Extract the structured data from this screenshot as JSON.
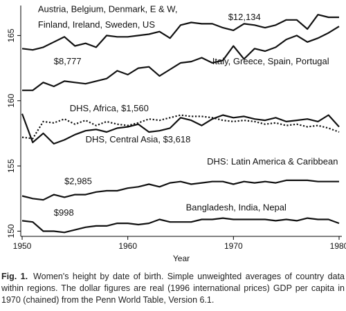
{
  "chart_data": {
    "type": "line",
    "xlabel": "Year",
    "ylabel": "",
    "xlim": [
      1950,
      1980
    ],
    "ylim": [
      149.6,
      167.3
    ],
    "xticks": [
      1950,
      1960,
      1970,
      1980
    ],
    "yticks": [
      150,
      155,
      160,
      165
    ],
    "grid": false,
    "x": [
      1950,
      1951,
      1952,
      1953,
      1954,
      1955,
      1956,
      1957,
      1958,
      1959,
      1960,
      1961,
      1962,
      1963,
      1964,
      1965,
      1966,
      1967,
      1968,
      1969,
      1970,
      1971,
      1972,
      1973,
      1974,
      1975,
      1976,
      1977,
      1978,
      1979,
      1980
    ],
    "series": [
      {
        "id": "western",
        "style": "solid",
        "values": [
          164.0,
          163.9,
          164.1,
          164.5,
          164.9,
          164.2,
          164.4,
          164.1,
          165.0,
          164.9,
          164.9,
          165.0,
          165.1,
          165.3,
          164.8,
          165.8,
          166.0,
          165.9,
          165.9,
          165.6,
          165.4,
          165.9,
          165.8,
          165.6,
          165.8,
          166.2,
          166.2,
          165.5,
          166.6,
          166.4,
          166.4
        ]
      },
      {
        "id": "southern",
        "style": "solid",
        "values": [
          160.8,
          160.8,
          161.4,
          161.1,
          161.5,
          161.4,
          161.3,
          161.5,
          161.7,
          162.3,
          162.0,
          162.5,
          162.6,
          161.9,
          162.4,
          162.9,
          163.0,
          163.3,
          162.9,
          163.1,
          164.2,
          163.2,
          164.0,
          163.8,
          164.1,
          164.7,
          165.0,
          164.5,
          164.8,
          165.2,
          165.7
        ]
      },
      {
        "id": "africa",
        "style": "dotted",
        "values": [
          157.2,
          157.1,
          158.4,
          158.3,
          158.6,
          158.2,
          158.5,
          158.1,
          158.4,
          158.2,
          158.1,
          158.3,
          158.6,
          158.5,
          158.7,
          158.9,
          158.8,
          158.8,
          158.7,
          158.5,
          158.4,
          158.5,
          158.4,
          158.2,
          158.3,
          158.1,
          158.2,
          158.0,
          158.1,
          157.9,
          157.6
        ]
      },
      {
        "id": "central_asia",
        "style": "solid",
        "values": [
          159.0,
          156.8,
          157.5,
          156.7,
          157.0,
          157.4,
          157.7,
          157.8,
          157.6,
          157.9,
          158.0,
          158.2,
          157.6,
          157.7,
          157.9,
          158.7,
          158.5,
          158.1,
          158.6,
          158.9,
          158.7,
          158.8,
          158.6,
          158.5,
          158.7,
          158.4,
          158.5,
          158.6,
          158.4,
          158.9,
          158.0
        ]
      },
      {
        "id": "latin_america",
        "style": "solid",
        "values": [
          152.7,
          152.5,
          152.4,
          152.8,
          152.6,
          152.8,
          152.8,
          153.0,
          153.1,
          153.1,
          153.3,
          153.4,
          153.6,
          153.4,
          153.7,
          153.8,
          153.6,
          153.7,
          153.8,
          153.8,
          153.6,
          153.8,
          153.7,
          153.8,
          153.7,
          153.9,
          153.9,
          153.9,
          153.8,
          153.8,
          153.8
        ]
      },
      {
        "id": "south_asia",
        "style": "solid",
        "values": [
          150.8,
          150.7,
          150.0,
          150.0,
          149.9,
          150.1,
          150.3,
          150.4,
          150.4,
          150.6,
          150.6,
          150.5,
          150.6,
          150.9,
          150.7,
          150.7,
          150.7,
          150.9,
          150.9,
          151.0,
          150.9,
          150.9,
          150.9,
          150.9,
          150.8,
          150.9,
          150.8,
          151.0,
          150.9,
          150.9,
          150.6
        ]
      }
    ],
    "annotations": [
      {
        "id": "western_names_1",
        "text": "Austria, Belgium, Denmark, E & W,",
        "at": [
          1951.5,
          166.8
        ]
      },
      {
        "id": "western_names_2",
        "text": "Finland, Ireland, Sweden, US",
        "at": [
          1951.5,
          165.6
        ]
      },
      {
        "id": "western_gdp",
        "text": "$12,134",
        "at": [
          1969.5,
          166.2
        ]
      },
      {
        "id": "southern_gdp",
        "text": "$8,777",
        "at": [
          1953.0,
          162.8
        ]
      },
      {
        "id": "southern_names",
        "text": "Italy, Greece, Spain, Portugal",
        "at": [
          1968.0,
          162.8
        ]
      },
      {
        "id": "africa_label",
        "text": "DHS, Africa, $1,560",
        "at": [
          1954.5,
          159.2
        ]
      },
      {
        "id": "central_asia_label",
        "text": "DHS, Central Asia, $3,618",
        "at": [
          1956.0,
          156.8
        ]
      },
      {
        "id": "latin_label",
        "text": "DHS: Latin America & Caribbean",
        "at": [
          1967.5,
          155.1
        ]
      },
      {
        "id": "latin_gdp",
        "text": "$2,985",
        "at": [
          1954.0,
          153.6
        ]
      },
      {
        "id": "south_asia_names",
        "text": "Bangladesh, India, Nepal",
        "at": [
          1965.5,
          151.6
        ]
      },
      {
        "id": "south_asia_gdp",
        "text": "$998",
        "at": [
          1953.0,
          151.2
        ]
      }
    ]
  },
  "caption": {
    "label": "Fig. 1.",
    "text": "Women's height by date of birth. Simple unweighted averages of country data within regions. The dollar figures are real (1996 international prices) GDP per capita in 1970 (chained) from the Penn World Table, Version 6.1."
  }
}
